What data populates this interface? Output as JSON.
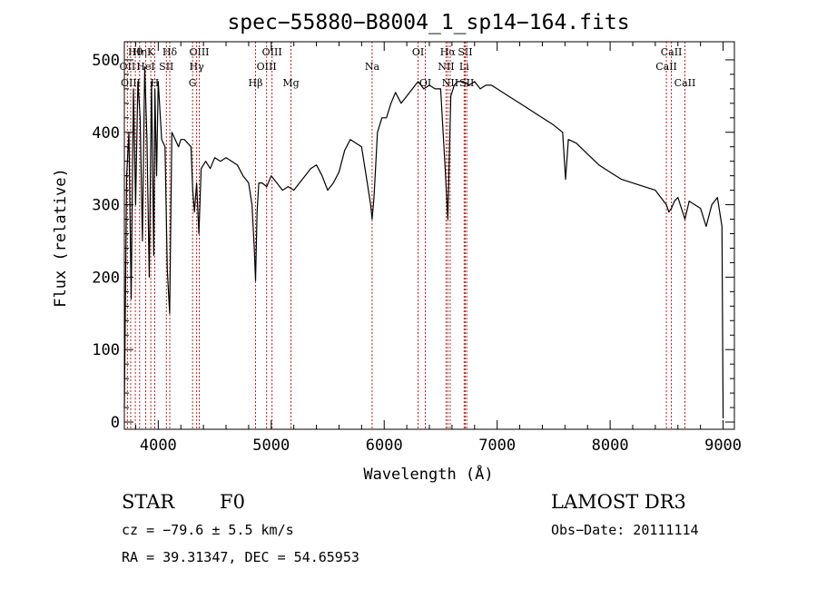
{
  "chart_data": {
    "type": "line",
    "title": "spec−55880−B8004_1_sp14−164.fits",
    "xlabel": "Wavelength (Å)",
    "ylabel": "Flux (relative)",
    "xlim": [
      3700,
      9100
    ],
    "ylim": [
      -10,
      525
    ],
    "xticks": [
      4000,
      5000,
      6000,
      7000,
      8000,
      9000
    ],
    "xtick_labels": [
      "4000",
      "5000",
      "6000",
      "7000",
      "8000",
      "9000"
    ],
    "yticks": [
      0,
      100,
      200,
      300,
      400,
      500
    ],
    "ytick_labels": [
      "0",
      "100",
      "200",
      "300",
      "400",
      "500"
    ],
    "grid": false,
    "series": [
      {
        "name": "",
        "x": [
          3700,
          3720,
          3740,
          3760,
          3780,
          3800,
          3820,
          3840,
          3860,
          3880,
          3900,
          3920,
          3940,
          3960,
          3970,
          3985,
          4000,
          4030,
          4060,
          4080,
          4101,
          4120,
          4150,
          4180,
          4200,
          4230,
          4260,
          4290,
          4305,
          4320,
          4340,
          4360,
          4380,
          4420,
          4460,
          4500,
          4550,
          4600,
          4650,
          4700,
          4750,
          4800,
          4830,
          4850,
          4861,
          4875,
          4890,
          4920,
          4960,
          5000,
          5050,
          5100,
          5150,
          5200,
          5250,
          5300,
          5350,
          5400,
          5450,
          5500,
          5550,
          5600,
          5650,
          5700,
          5750,
          5800,
          5850,
          5880,
          5893,
          5910,
          5940,
          5980,
          6020,
          6060,
          6100,
          6150,
          6200,
          6250,
          6300,
          6350,
          6400,
          6450,
          6500,
          6540,
          6563,
          6590,
          6620,
          6650,
          6700,
          6750,
          6800,
          6850,
          6900,
          6950,
          7000,
          7100,
          7200,
          7300,
          7400,
          7500,
          7580,
          7605,
          7630,
          7700,
          7800,
          7900,
          8000,
          8100,
          8200,
          8300,
          8400,
          8498,
          8520,
          8542,
          8570,
          8600,
          8662,
          8700,
          8750,
          8800,
          8850,
          8900,
          8950,
          8990,
          9000
        ],
        "y": [
          20,
          340,
          400,
          170,
          460,
          300,
          470,
          420,
          250,
          490,
          390,
          200,
          470,
          230,
          460,
          340,
          470,
          390,
          380,
          210,
          150,
          400,
          390,
          380,
          390,
          390,
          385,
          380,
          320,
          290,
          330,
          260,
          350,
          360,
          350,
          365,
          360,
          365,
          360,
          355,
          340,
          330,
          300,
          240,
          195,
          290,
          330,
          330,
          325,
          340,
          330,
          320,
          325,
          320,
          330,
          340,
          350,
          355,
          340,
          320,
          330,
          345,
          375,
          390,
          385,
          380,
          330,
          300,
          280,
          310,
          400,
          420,
          420,
          440,
          455,
          440,
          450,
          460,
          470,
          460,
          465,
          460,
          460,
          350,
          280,
          450,
          465,
          470,
          470,
          465,
          470,
          460,
          465,
          465,
          460,
          450,
          440,
          430,
          420,
          410,
          400,
          335,
          390,
          385,
          370,
          355,
          345,
          335,
          330,
          325,
          320,
          300,
          290,
          295,
          305,
          310,
          280,
          305,
          300,
          295,
          270,
          300,
          310,
          270,
          5
        ]
      }
    ],
    "lines": [
      {
        "label": "Hθ",
        "x": 3797,
        "row": 1
      },
      {
        "label": "OII",
        "x": 3727,
        "row": 2
      },
      {
        "label": "OIII",
        "x": 3756,
        "row": 3
      },
      {
        "label": "Hη",
        "x": 3835,
        "row": 1
      },
      {
        "label": "HeI",
        "x": 3889,
        "row": 2
      },
      {
        "label": "K",
        "x": 3934,
        "row": 1
      },
      {
        "label": "H",
        "x": 3969,
        "row": 3
      },
      {
        "label": "SII",
        "x": 4072,
        "row": 2
      },
      {
        "label": "Hδ",
        "x": 4102,
        "row": 1
      },
      {
        "label": "OIII",
        "x": 4363,
        "row": 1
      },
      {
        "label": "Hγ",
        "x": 4340,
        "row": 2
      },
      {
        "label": "G",
        "x": 4304,
        "row": 3
      },
      {
        "label": "Hβ",
        "x": 4861,
        "row": 3
      },
      {
        "label": "OIII",
        "x": 5007,
        "row": 1
      },
      {
        "label": "OIII",
        "x": 4959,
        "row": 2
      },
      {
        "label": "Mg",
        "x": 5175,
        "row": 3
      },
      {
        "label": "Na",
        "x": 5893,
        "row": 2
      },
      {
        "label": "OI",
        "x": 6300,
        "row": 1
      },
      {
        "label": "OI",
        "x": 6364,
        "row": 3
      },
      {
        "label": "Hα",
        "x": 6563,
        "row": 1
      },
      {
        "label": "NII",
        "x": 6548,
        "row": 2
      },
      {
        "label": "NII",
        "x": 6584,
        "row": 3
      },
      {
        "label": "SII",
        "x": 6717,
        "row": 1
      },
      {
        "label": "Li",
        "x": 6708,
        "row": 2
      },
      {
        "label": "SII",
        "x": 6731,
        "row": 3
      },
      {
        "label": "CaII",
        "x": 8542,
        "row": 1
      },
      {
        "label": "CaII",
        "x": 8498,
        "row": 2
      },
      {
        "label": "CaII",
        "x": 8662,
        "row": 3
      }
    ]
  },
  "info": {
    "object_class": "STAR",
    "subclass": "F0",
    "survey": "LAMOST DR3",
    "cz": "cz = −79.6 ± 5.5 km/s",
    "obs_date": "Obs−Date: 20111114",
    "coords": "RA =  39.31347, DEC =  54.65953"
  }
}
